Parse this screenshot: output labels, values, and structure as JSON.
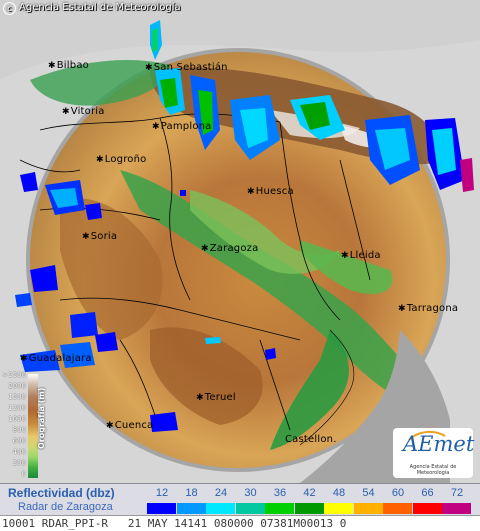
{
  "map": {
    "copyright_symbol": "c",
    "copyright": "Agencia Estatal de Meteorología",
    "cities": [
      {
        "name": "Bilbao",
        "id": "bilbao"
      },
      {
        "name": "San Sebastián",
        "id": "san-sebastian"
      },
      {
        "name": "Vitoria",
        "id": "vitoria"
      },
      {
        "name": "Pamplona",
        "id": "pamplona"
      },
      {
        "name": "Logroño",
        "id": "logrono"
      },
      {
        "name": "Huesca",
        "id": "huesca"
      },
      {
        "name": "Soria",
        "id": "soria"
      },
      {
        "name": "Zaragoza",
        "id": "zaragoza"
      },
      {
        "name": "Lleida",
        "id": "lleida"
      },
      {
        "name": "Tarragona",
        "id": "tarragona"
      },
      {
        "name": "Guadalajara",
        "id": "guadalajara"
      },
      {
        "name": "Teruel",
        "id": "teruel"
      },
      {
        "name": "Cuenca",
        "id": "cuenca"
      },
      {
        "name": "Castellon.",
        "id": "castellon"
      }
    ]
  },
  "altitude_legend": {
    "title": "Orografía (m)",
    "ticks": [
      ">2500",
      "2000",
      "1500",
      "1200",
      "1000",
      "800",
      "600",
      "400",
      "200",
      "0"
    ]
  },
  "logo": {
    "text": "AEmet",
    "subtitle": "Agencia Estatal de Meteorología"
  },
  "reflectivity": {
    "title": "Reflectividad (dbz)",
    "subtitle": "Radar de Zaragoza",
    "values": [
      "12",
      "18",
      "24",
      "30",
      "36",
      "42",
      "48",
      "54",
      "60",
      "66",
      "72"
    ],
    "colors": [
      "#0000ff",
      "#0099ff",
      "#00e8ff",
      "#00c8a0",
      "#00d000",
      "#009a00",
      "#ffff00",
      "#ffb000",
      "#ff6000",
      "#ff0000",
      "#c00080"
    ]
  },
  "footer": {
    "text": "10001 RDAR_PPI-R   21 MAY 14141 080000 07381M00013 0"
  },
  "colors": {
    "lowland": "#2f9a45",
    "midland": "#d2a65a",
    "highland": "#a8682a",
    "peak": "#e8e0d8",
    "outside": "#d8d8d8",
    "radar_edge": "#a0a0a0"
  }
}
